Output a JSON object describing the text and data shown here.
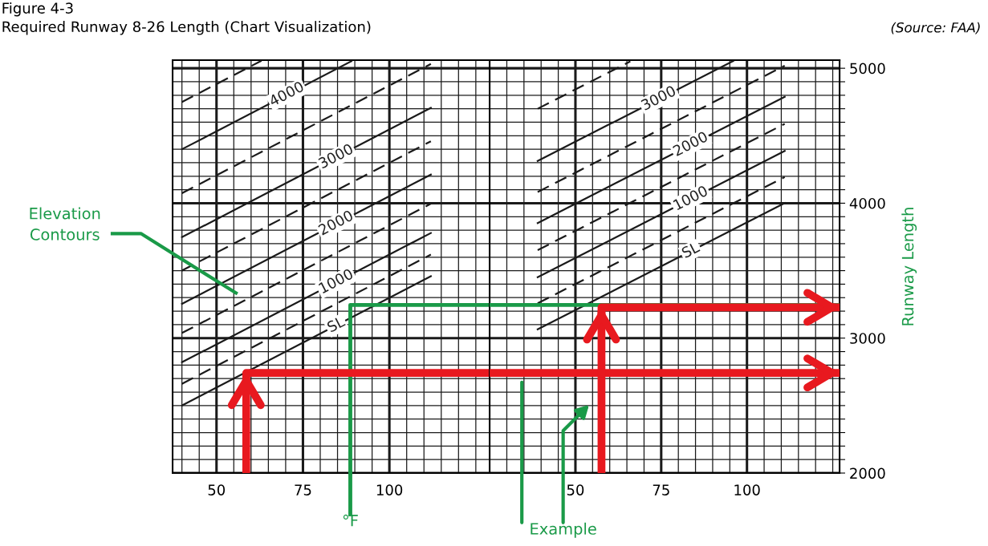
{
  "chart_data": [
    {
      "type": "line",
      "subtitle": "Required Runway 8-26 Length (Chart Visualization)",
      "xlim": [
        37.3,
        129
      ],
      "ylim": [
        2000,
        5060
      ],
      "xticks": [
        {
          "value": 40,
          "label": null
        },
        {
          "value": 45,
          "label": null
        },
        50,
        {
          "value": 55,
          "label": null
        },
        {
          "value": 60,
          "label": null
        },
        {
          "value": 65,
          "label": null
        },
        {
          "value": 70,
          "label": null
        },
        75,
        {
          "value": 80,
          "label": null
        },
        {
          "value": 85,
          "label": null
        },
        {
          "value": 90,
          "label": null
        },
        {
          "value": 95,
          "label": null
        },
        100,
        {
          "value": 105,
          "label": null
        },
        {
          "value": 110,
          "label": null
        },
        {
          "value": 115,
          "label": null
        },
        {
          "value": 120,
          "label": null
        },
        {
          "value": 125,
          "label": null
        }
      ],
      "yticks": [
        2000,
        {
          "value": 2100,
          "label": null
        },
        {
          "value": 2200,
          "label": null
        },
        {
          "value": 2300,
          "label": null
        },
        {
          "value": 2400,
          "label": null
        },
        {
          "value": 2500,
          "label": null
        },
        {
          "value": 2600,
          "label": null
        },
        {
          "value": 2700,
          "label": null
        },
        {
          "value": 2800,
          "label": null
        },
        {
          "value": 2900,
          "label": null
        },
        3000,
        {
          "value": 3100,
          "label": null
        },
        {
          "value": 3200,
          "label": null
        },
        {
          "value": 3300,
          "label": null
        },
        {
          "value": 3400,
          "label": null
        },
        {
          "value": 3500,
          "label": null
        },
        {
          "value": 3600,
          "label": null
        },
        {
          "value": 3700,
          "label": null
        },
        {
          "value": 3800,
          "label": null
        },
        {
          "value": 3900,
          "label": null
        },
        4000,
        {
          "value": 4100,
          "label": null
        },
        {
          "value": 4200,
          "label": null
        },
        {
          "value": 4300,
          "label": null
        },
        {
          "value": 4400,
          "label": null
        },
        {
          "value": 4500,
          "label": null
        },
        {
          "value": 4600,
          "label": null
        },
        {
          "value": 4700,
          "label": null
        },
        {
          "value": 4800,
          "label": null
        },
        {
          "value": 4900,
          "label": null
        },
        5000
      ],
      "tick_labels": "x",
      "grid": true,
      "series": [
        {
          "name": "SL",
          "color": "#1a1a1a",
          "line_style": "solid",
          "x": [
            40,
            112
          ],
          "values": [
            2501,
            3459
          ]
        },
        {
          "color": "#1a1a1a",
          "line_style": "dashed",
          "x": [
            40,
            112
          ],
          "values": [
            2661,
            3619
          ]
        },
        {
          "name": "1000",
          "color": "#1a1a1a",
          "line_style": "solid",
          "x": [
            40,
            112
          ],
          "values": [
            2821,
            3779
          ]
        },
        {
          "color": "#1a1a1a",
          "line_style": "dashed",
          "x": [
            40,
            112
          ],
          "values": [
            3038,
            3996
          ]
        },
        {
          "name": "2000",
          "color": "#1a1a1a",
          "line_style": "solid",
          "x": [
            40,
            112
          ],
          "values": [
            3254,
            4212
          ]
        },
        {
          "color": "#1a1a1a",
          "line_style": "dashed",
          "x": [
            40,
            112
          ],
          "values": [
            3501,
            4459
          ]
        },
        {
          "name": "3000",
          "color": "#1a1a1a",
          "line_style": "solid",
          "x": [
            40,
            112
          ],
          "values": [
            3748,
            4706
          ]
        },
        {
          "color": "#1a1a1a",
          "line_style": "dashed",
          "x": [
            40,
            112
          ],
          "values": [
            4074,
            5032
          ]
        },
        {
          "name": "4000",
          "color": "#1a1a1a",
          "line_style": "solid",
          "x": [
            40,
            89
          ],
          "values": [
            4400,
            5052
          ]
        },
        {
          "color": "#1a1a1a",
          "line_style": "dashed",
          "x": [
            40,
            63
          ],
          "values": [
            4750,
            5056
          ]
        },
        {
          "color": "#e8191f",
          "line_style": "solid",
          "x": [
            58.6,
            58.6,
            129
          ],
          "values": [
            2000,
            2742,
            2742
          ]
        },
        {
          "color": "#1a9a48",
          "line_style": "solid",
          "x": [
            88.7,
            88.7,
            129
          ],
          "values": [
            2000,
            3246,
            3246
          ]
        }
      ],
      "annotations": [
        "(Source: FAA)",
        "Elevation Contours",
        "°F",
        "Figure 4-3"
      ]
    },
    {
      "type": "line",
      "xlim": [
        25,
        127
      ],
      "ylim": [
        2000,
        5060
      ],
      "ylabel": "Runway Length",
      "xticks": [
        {
          "value": 30,
          "label": null
        },
        {
          "value": 35,
          "label": null
        },
        {
          "value": 40,
          "label": null
        },
        {
          "value": 45,
          "label": null
        },
        50,
        {
          "value": 55,
          "label": null
        },
        {
          "value": 60,
          "label": null
        },
        {
          "value": 65,
          "label": null
        },
        {
          "value": 70,
          "label": null
        },
        75,
        {
          "value": 80,
          "label": null
        },
        {
          "value": 85,
          "label": null
        },
        {
          "value": 90,
          "label": null
        },
        {
          "value": 95,
          "label": null
        },
        100,
        {
          "value": 105,
          "label": null
        },
        {
          "value": 110,
          "label": null
        },
        {
          "value": 115,
          "label": null
        },
        {
          "value": 120,
          "label": null
        },
        {
          "value": 125,
          "label": null
        }
      ],
      "yticks": [
        2000,
        {
          "value": 2100,
          "label": null
        },
        {
          "value": 2200,
          "label": null
        },
        {
          "value": 2300,
          "label": null
        },
        {
          "value": 2400,
          "label": null
        },
        {
          "value": 2500,
          "label": null
        },
        {
          "value": 2600,
          "label": null
        },
        {
          "value": 2700,
          "label": null
        },
        {
          "value": 2800,
          "label": null
        },
        {
          "value": 2900,
          "label": null
        },
        3000,
        {
          "value": 3100,
          "label": null
        },
        {
          "value": 3200,
          "label": null
        },
        {
          "value": 3300,
          "label": null
        },
        {
          "value": 3400,
          "label": null
        },
        {
          "value": 3500,
          "label": null
        },
        {
          "value": 3600,
          "label": null
        },
        {
          "value": 3700,
          "label": null
        },
        {
          "value": 3800,
          "label": null
        },
        {
          "value": 3900,
          "label": null
        },
        4000,
        {
          "value": 4100,
          "label": null
        },
        {
          "value": 4200,
          "label": null
        },
        {
          "value": 4300,
          "label": null
        },
        {
          "value": 4400,
          "label": null
        },
        {
          "value": 4500,
          "label": null
        },
        {
          "value": 4600,
          "label": null
        },
        {
          "value": 4700,
          "label": null
        },
        {
          "value": 4800,
          "label": null
        },
        {
          "value": 4900,
          "label": null
        },
        5000
      ],
      "grid": true,
      "series": [
        {
          "name": "SL",
          "color": "#1a1a1a",
          "line_style": "solid",
          "x": [
            39,
            111
          ],
          "values": [
            3065,
            4001
          ]
        },
        {
          "color": "#1a1a1a",
          "line_style": "dashed",
          "x": [
            39,
            111
          ],
          "values": [
            3258,
            4194
          ]
        },
        {
          "name": "1000",
          "color": "#1a1a1a",
          "line_style": "solid",
          "x": [
            39,
            111
          ],
          "values": [
            3451,
            4387
          ]
        },
        {
          "color": "#1a1a1a",
          "line_style": "dashed",
          "x": [
            39,
            111
          ],
          "values": [
            3652,
            4588
          ]
        },
        {
          "name": "2000",
          "color": "#1a1a1a",
          "line_style": "solid",
          "x": [
            39,
            111
          ],
          "values": [
            3853,
            4789
          ]
        },
        {
          "color": "#1a1a1a",
          "line_style": "dashed",
          "x": [
            39,
            111
          ],
          "values": [
            4083,
            5019
          ]
        },
        {
          "name": "3000",
          "color": "#1a1a1a",
          "line_style": "solid",
          "x": [
            39,
            96
          ],
          "values": [
            4313,
            5054
          ]
        },
        {
          "color": "#1a1a1a",
          "line_style": "dashed",
          "x": [
            39,
            66
          ],
          "values": [
            4700,
            5051
          ]
        },
        {
          "color": "#e8191f",
          "line_style": "solid",
          "x": [
            25,
            127
          ],
          "values": [
            2742,
            2742
          ]
        },
        {
          "color": "#e8191f",
          "line_style": "solid",
          "x": [
            57.6,
            57.6,
            127
          ],
          "values": [
            2000,
            3228,
            3228
          ]
        }
      ],
      "ref_lines": [
        {
          "axis": "y",
          "value": 3246,
          "color": "#1a9a48"
        }
      ],
      "annotations": [
        "Example"
      ]
    }
  ]
}
